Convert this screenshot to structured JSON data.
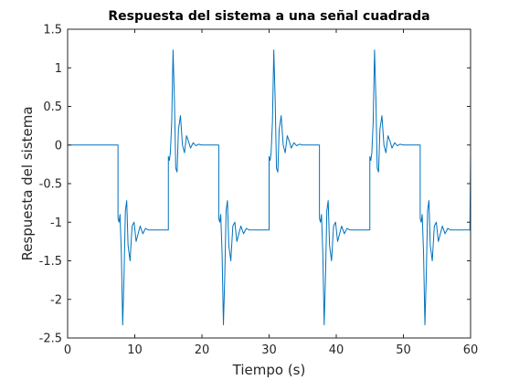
{
  "chart_data": {
    "type": "line",
    "title": "Respuesta del sistema a una señal cuadrada",
    "xlabel": "Tiempo (s)",
    "ylabel": "Respuesta del sistema",
    "xlim": [
      0,
      60
    ],
    "ylim": [
      -2.5,
      1.5
    ],
    "x_ticks": [
      0,
      10,
      20,
      30,
      40,
      50,
      60
    ],
    "x_tick_labels": [
      "0",
      "10",
      "20",
      "30",
      "40",
      "50",
      "60"
    ],
    "y_ticks": [
      1.5,
      1,
      0.5,
      0,
      -0.5,
      -1,
      -1.5,
      -2,
      -2.5
    ],
    "y_tick_labels": [
      "1.5",
      "1",
      "0.5",
      "0",
      "-0.5",
      "-1",
      "-1.5",
      "-2",
      "-2.5"
    ],
    "grid": false,
    "box": true,
    "line_color": "#0072BD",
    "axis_color": "#262626",
    "series": [
      {
        "x": [
          0,
          7.5,
          7.5,
          7.65,
          7.8,
          8.0,
          8.2,
          8.4,
          8.6,
          8.8,
          9.0,
          9.3,
          9.6,
          9.9,
          10.2,
          10.5,
          10.8,
          11.2,
          11.6,
          12.0,
          12.5,
          13.0,
          14.0,
          15.0,
          15.0,
          15.15,
          15.3,
          15.5,
          15.7,
          15.9,
          16.1,
          16.3,
          16.5,
          16.8,
          17.1,
          17.4,
          17.7,
          18.0,
          18.3,
          18.7,
          19.1,
          19.5,
          20.0,
          20.5,
          21.5,
          22.5,
          22.5,
          22.65,
          22.8,
          23.0,
          23.2,
          23.4,
          23.6,
          23.8,
          24.0,
          24.3,
          24.6,
          24.9,
          25.2,
          25.5,
          25.8,
          26.2,
          26.6,
          27.0,
          27.5,
          28.0,
          29.0,
          30.0,
          30.0,
          30.15,
          30.3,
          30.5,
          30.7,
          30.9,
          31.1,
          31.3,
          31.5,
          31.8,
          32.1,
          32.4,
          32.7,
          33.0,
          33.3,
          33.7,
          34.1,
          34.5,
          35.0,
          35.5,
          36.5,
          37.5,
          37.5,
          37.65,
          37.8,
          38.0,
          38.2,
          38.4,
          38.6,
          38.8,
          39.0,
          39.3,
          39.6,
          39.9,
          40.2,
          40.5,
          40.8,
          41.2,
          41.6,
          42.0,
          42.5,
          43.0,
          44.0,
          45.0,
          45.0,
          45.15,
          45.3,
          45.5,
          45.7,
          45.9,
          46.1,
          46.3,
          46.5,
          46.8,
          47.1,
          47.4,
          47.7,
          48.0,
          48.3,
          48.7,
          49.1,
          49.5,
          50.0,
          50.5,
          51.5,
          52.5,
          52.5,
          52.65,
          52.8,
          53.0,
          53.2,
          53.4,
          53.6,
          53.8,
          54.0,
          54.3,
          54.6,
          54.9,
          55.2,
          55.5,
          55.8,
          56.2,
          56.6,
          57.0,
          57.5,
          58.0,
          59.0,
          59.9,
          60.0
        ],
        "y": [
          0,
          0,
          -0.95,
          -1.0,
          -0.9,
          -1.4,
          -2.33,
          -1.7,
          -0.85,
          -0.72,
          -1.3,
          -1.5,
          -1.05,
          -1.0,
          -1.25,
          -1.15,
          -1.05,
          -1.15,
          -1.08,
          -1.1,
          -1.1,
          -1.1,
          -1.1,
          -1.1,
          -0.15,
          -0.2,
          -0.1,
          0.3,
          1.23,
          0.6,
          -0.3,
          -0.35,
          0.2,
          0.38,
          0.0,
          -0.1,
          0.12,
          0.05,
          -0.04,
          0.03,
          -0.01,
          0.01,
          0,
          0,
          0,
          0,
          -0.95,
          -1.0,
          -0.9,
          -1.4,
          -2.33,
          -1.7,
          -0.85,
          -0.72,
          -1.3,
          -1.5,
          -1.05,
          -1.0,
          -1.25,
          -1.15,
          -1.05,
          -1.15,
          -1.08,
          -1.1,
          -1.1,
          -1.1,
          -1.1,
          -1.1,
          -0.15,
          -0.2,
          -0.1,
          0.3,
          1.23,
          0.6,
          -0.3,
          -0.35,
          0.2,
          0.38,
          0.0,
          -0.1,
          0.12,
          0.05,
          -0.04,
          0.03,
          -0.01,
          0.01,
          0,
          0,
          0,
          0,
          -0.95,
          -1.0,
          -0.9,
          -1.4,
          -2.33,
          -1.7,
          -0.85,
          -0.72,
          -1.3,
          -1.5,
          -1.05,
          -1.0,
          -1.25,
          -1.15,
          -1.05,
          -1.15,
          -1.08,
          -1.1,
          -1.1,
          -1.1,
          -1.1,
          -1.1,
          -0.15,
          -0.2,
          -0.1,
          0.3,
          1.23,
          0.6,
          -0.3,
          -0.35,
          0.2,
          0.38,
          0.0,
          -0.1,
          0.12,
          0.05,
          -0.04,
          0.03,
          -0.01,
          0.01,
          0,
          0,
          0,
          0,
          -0.95,
          -1.0,
          -0.9,
          -1.4,
          -2.33,
          -1.7,
          -0.85,
          -0.72,
          -1.3,
          -1.5,
          -1.05,
          -1.0,
          -1.25,
          -1.15,
          -1.05,
          -1.15,
          -1.08,
          -1.1,
          -1.1,
          -1.1,
          -1.1,
          -1.1,
          -0.1
        ]
      }
    ]
  }
}
